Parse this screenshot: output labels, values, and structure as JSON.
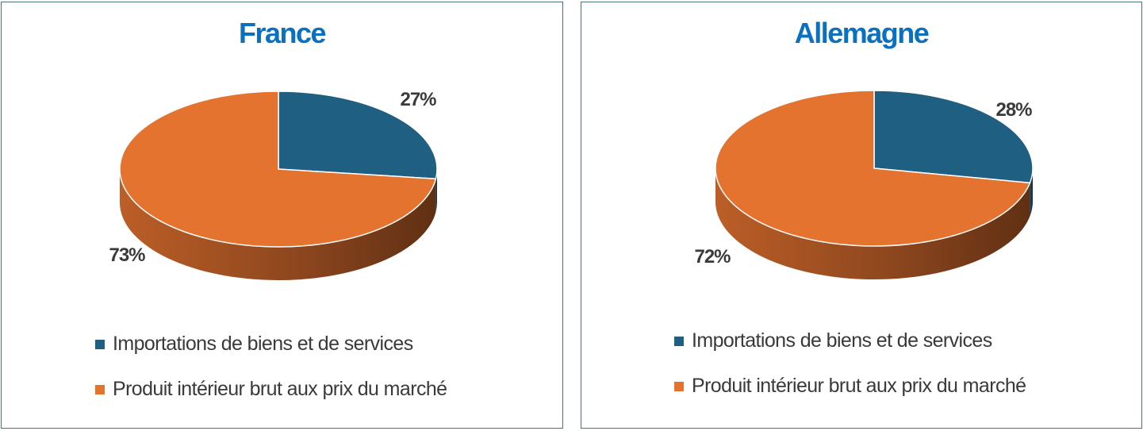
{
  "colors": {
    "title": "#0a70c0",
    "border": "#4d6f86"
  },
  "chart_data": [
    {
      "type": "pie",
      "title": "France",
      "series": [
        {
          "name": "Importations de biens et de services",
          "value": 27,
          "label": "27%",
          "color": "#1f5f82"
        },
        {
          "name": "Produit intérieur brut aux prix du marché",
          "value": 73,
          "label": "73%",
          "color": "#e57330"
        }
      ],
      "legend": "bottom"
    },
    {
      "type": "pie",
      "title": "Allemagne",
      "series": [
        {
          "name": "Importations de biens et de services",
          "value": 28,
          "label": "28%",
          "color": "#1f5f82"
        },
        {
          "name": "Produit intérieur brut aux prix du marché",
          "value": 72,
          "label": "72%",
          "color": "#e57330"
        }
      ],
      "legend": "bottom"
    }
  ]
}
